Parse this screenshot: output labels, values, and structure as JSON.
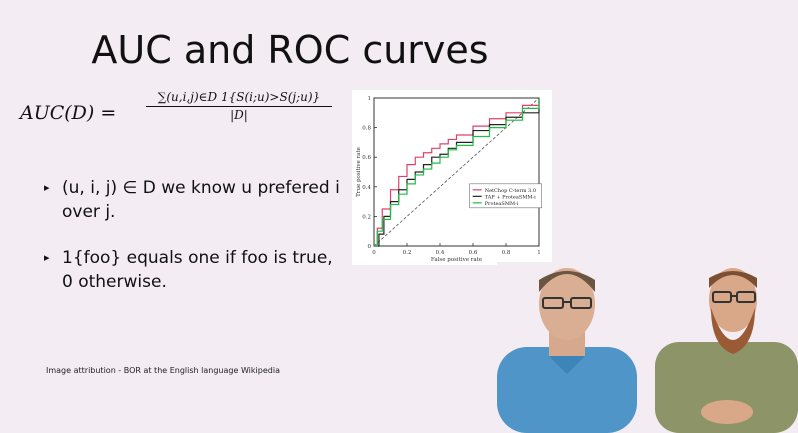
{
  "slide": {
    "title": "AUC and ROC curves",
    "formula": {
      "lhs": "AUC(D) =",
      "numerator": "∑(u,i,j)∈D 1{S(i;u)>S(j;u)}",
      "denominator": "|D|"
    },
    "bullets": [
      {
        "marker": "▸",
        "text": "(u, i, j) ∈ D we know u prefered i over j."
      },
      {
        "marker": "▸",
        "text": "1{foo} equals one if foo is true, 0 otherwise."
      }
    ],
    "attribution": "Image attribution - BOR at the English language Wikipedia"
  },
  "chart_data": {
    "type": "line",
    "xlabel": "False positive rate",
    "ylabel": "True positive rate",
    "xlim": [
      0,
      1
    ],
    "ylim": [
      0,
      1
    ],
    "x_ticks": [
      "0",
      "0.2",
      "0.4",
      "0.6",
      "0.8",
      "1"
    ],
    "y_ticks": [
      "0",
      "0.2",
      "0.4",
      "0.6",
      "0.8",
      "1"
    ],
    "legend_position": "center-right",
    "series": [
      {
        "name": "NetChop C-term 3.0",
        "color": "#e0406a",
        "points": [
          [
            0,
            0
          ],
          [
            0.02,
            0.12
          ],
          [
            0.05,
            0.25
          ],
          [
            0.1,
            0.38
          ],
          [
            0.15,
            0.47
          ],
          [
            0.2,
            0.55
          ],
          [
            0.25,
            0.6
          ],
          [
            0.3,
            0.63
          ],
          [
            0.35,
            0.66
          ],
          [
            0.4,
            0.69
          ],
          [
            0.45,
            0.72
          ],
          [
            0.5,
            0.75
          ],
          [
            0.6,
            0.81
          ],
          [
            0.7,
            0.86
          ],
          [
            0.8,
            0.9
          ],
          [
            0.9,
            0.95
          ],
          [
            1,
            1
          ]
        ]
      },
      {
        "name": "TAP + ProteaSMM-i",
        "color": "#222222",
        "points": [
          [
            0,
            0
          ],
          [
            0.03,
            0.08
          ],
          [
            0.06,
            0.2
          ],
          [
            0.1,
            0.3
          ],
          [
            0.15,
            0.38
          ],
          [
            0.2,
            0.45
          ],
          [
            0.25,
            0.5
          ],
          [
            0.3,
            0.55
          ],
          [
            0.35,
            0.6
          ],
          [
            0.4,
            0.62
          ],
          [
            0.45,
            0.66
          ],
          [
            0.5,
            0.7
          ],
          [
            0.6,
            0.78
          ],
          [
            0.7,
            0.82
          ],
          [
            0.8,
            0.87
          ],
          [
            0.9,
            0.9
          ],
          [
            1,
            1
          ]
        ]
      },
      {
        "name": "ProteaSMM-i",
        "color": "#22bb44",
        "points": [
          [
            0,
            0
          ],
          [
            0.02,
            0.1
          ],
          [
            0.05,
            0.18
          ],
          [
            0.1,
            0.28
          ],
          [
            0.15,
            0.35
          ],
          [
            0.2,
            0.42
          ],
          [
            0.25,
            0.48
          ],
          [
            0.3,
            0.52
          ],
          [
            0.35,
            0.56
          ],
          [
            0.4,
            0.6
          ],
          [
            0.45,
            0.65
          ],
          [
            0.5,
            0.68
          ],
          [
            0.6,
            0.74
          ],
          [
            0.7,
            0.8
          ],
          [
            0.8,
            0.85
          ],
          [
            0.9,
            0.93
          ],
          [
            1,
            1
          ]
        ]
      }
    ],
    "reference_line": true
  },
  "camera": {
    "left_person": {
      "shirt": "#4f95c8"
    },
    "right_person": {
      "shirt": "#8d9468"
    }
  }
}
